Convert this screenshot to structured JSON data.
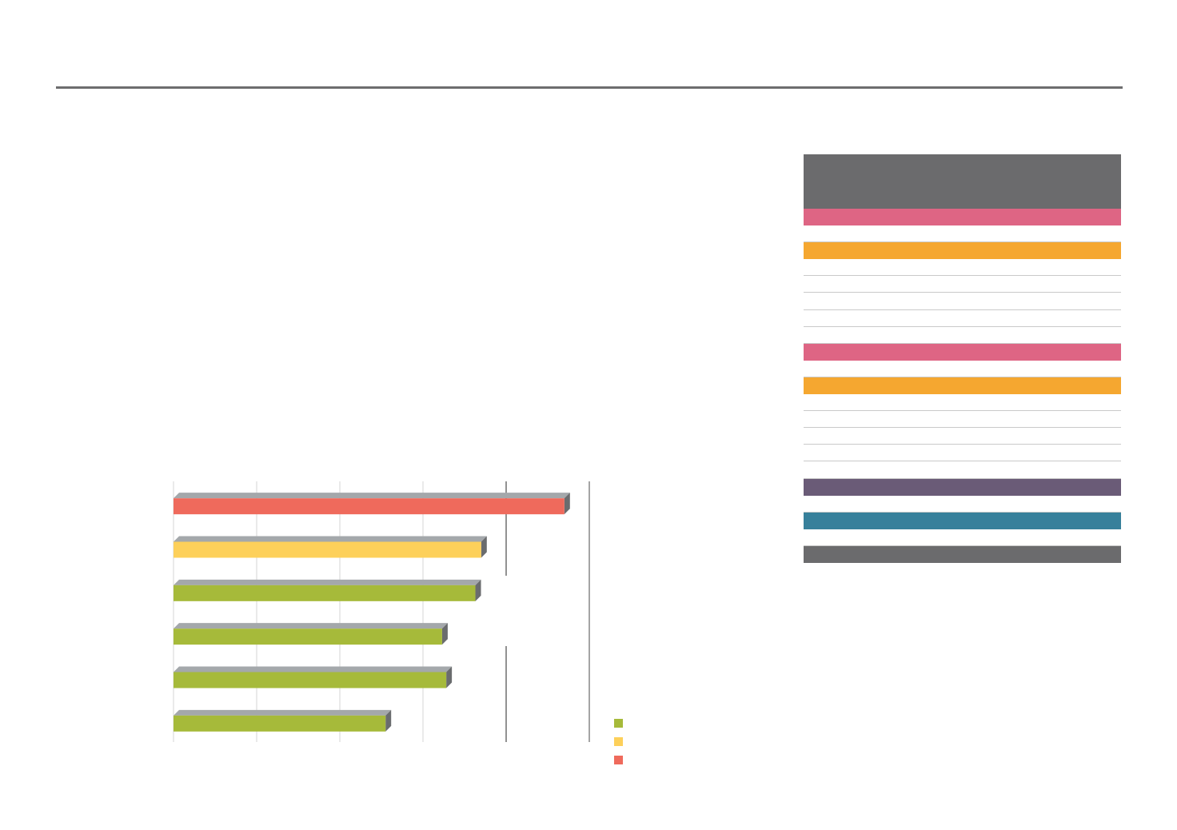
{
  "colors": {
    "rule": "#6d6d6e",
    "bar_green": "#a6ba3a",
    "bar_yellow": "#fdd05a",
    "bar_red": "#ef6a5c",
    "bar_top": "#a4a8ab",
    "bar_side": "#6a6c6e",
    "axis": "#4a4a4a",
    "grid": "#d4d4d4"
  },
  "chart_data": {
    "type": "bar",
    "orientation": "horizontal",
    "style": "3d",
    "categories": [
      "",
      "",
      "",
      "",
      "",
      ""
    ],
    "values": [
      4.7,
      3.7,
      3.63,
      3.23,
      3.28,
      2.55
    ],
    "bar_colors": [
      "#ef6a5c",
      "#fdd05a",
      "#a6ba3a",
      "#a6ba3a",
      "#a6ba3a",
      "#a6ba3a"
    ],
    "xlim": [
      0,
      5
    ],
    "gridlines": [
      1,
      2,
      3,
      4,
      5
    ],
    "xlabel": "",
    "ylabel": "",
    "tick_labels": [],
    "legend": {
      "placement": "bottom-right",
      "entries": [
        {
          "color": "#a6ba3a",
          "label": ""
        },
        {
          "color": "#fdd05a",
          "label": ""
        },
        {
          "color": "#ef6a5c",
          "label": ""
        }
      ]
    }
  },
  "side_table": {
    "header_color": "#6b6b6d",
    "rows": [
      {
        "kind": "band",
        "color": "#de6584",
        "label": ""
      },
      {
        "kind": "plain",
        "label": ""
      },
      {
        "kind": "band",
        "color": "#f5a730",
        "label": ""
      },
      {
        "kind": "plain",
        "label": ""
      },
      {
        "kind": "plain",
        "label": ""
      },
      {
        "kind": "plain",
        "label": ""
      },
      {
        "kind": "plain",
        "label": ""
      },
      {
        "kind": "plain",
        "label": ""
      },
      {
        "kind": "band",
        "color": "#de6584",
        "label": ""
      },
      {
        "kind": "plain",
        "label": ""
      },
      {
        "kind": "band",
        "color": "#f5a730",
        "label": ""
      },
      {
        "kind": "plain",
        "label": ""
      },
      {
        "kind": "plain",
        "label": ""
      },
      {
        "kind": "plain",
        "label": ""
      },
      {
        "kind": "plain",
        "label": ""
      },
      {
        "kind": "plain",
        "label": ""
      },
      {
        "kind": "band",
        "color": "#6a5b77",
        "label": ""
      },
      {
        "kind": "plain",
        "label": ""
      },
      {
        "kind": "band",
        "color": "#37809b",
        "label": ""
      },
      {
        "kind": "plain",
        "label": ""
      },
      {
        "kind": "band",
        "color": "#6b6b6d",
        "label": ""
      }
    ]
  }
}
